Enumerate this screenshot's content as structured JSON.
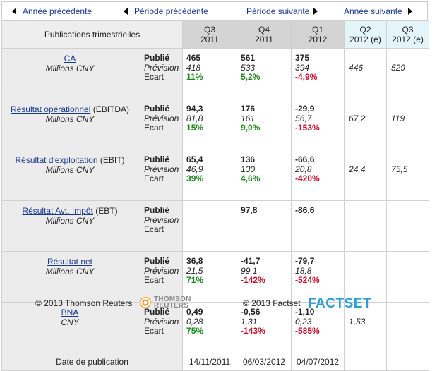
{
  "nav": {
    "prev_year": "Année précédente",
    "prev_period": "Période précédente",
    "next_period": "Période suivante",
    "next_year": "Année suivante"
  },
  "table": {
    "header_label": "Publications trimestrielles",
    "periods": [
      {
        "q": "Q3",
        "y": "2011",
        "estimate": false
      },
      {
        "q": "Q4",
        "y": "2011",
        "estimate": false
      },
      {
        "q": "Q1",
        "y": "2012",
        "estimate": false
      },
      {
        "q": "Q2",
        "y": "2012 (e)",
        "estimate": true
      },
      {
        "q": "Q3",
        "y": "2012 (e)",
        "estimate": true
      }
    ],
    "kinds": [
      "Publié",
      "Prévision",
      "Ecart"
    ],
    "rows": [
      {
        "name": "CA",
        "suffix": "",
        "unit": "Millions CNY",
        "actuals": [
          {
            "pub": "465",
            "prev": "418",
            "ecart": "11%",
            "sign": "pos"
          },
          {
            "pub": "561",
            "prev": "533",
            "ecart": "5,2%",
            "sign": "pos"
          },
          {
            "pub": "375",
            "prev": "394",
            "ecart": "-4,9%",
            "sign": "neg"
          }
        ],
        "estimates": [
          "446",
          "529"
        ]
      },
      {
        "name": "Résultat opérationnel",
        "suffix": " (EBITDA)",
        "unit": "Millions CNY",
        "actuals": [
          {
            "pub": "94,3",
            "prev": "81,8",
            "ecart": "15%",
            "sign": "pos"
          },
          {
            "pub": "176",
            "prev": "161",
            "ecart": "9,0%",
            "sign": "pos"
          },
          {
            "pub": "-29,9",
            "prev": "56,7",
            "ecart": "-153%",
            "sign": "neg"
          }
        ],
        "estimates": [
          "67,2",
          "119"
        ]
      },
      {
        "name": "Résultat d'exploitation",
        "suffix": " (EBIT)",
        "unit": "Millions CNY",
        "actuals": [
          {
            "pub": "65,4",
            "prev": "46,9",
            "ecart": "39%",
            "sign": "pos"
          },
          {
            "pub": "136",
            "prev": "130",
            "ecart": "4,6%",
            "sign": "pos"
          },
          {
            "pub": "-66,6",
            "prev": "20,8",
            "ecart": "-420%",
            "sign": "neg"
          }
        ],
        "estimates": [
          "24,4",
          "75,5"
        ]
      },
      {
        "name": "Résultat Avt. Impôt",
        "suffix": " (EBT)",
        "unit": "Millions CNY",
        "actuals": [
          {
            "pub": "",
            "prev": "",
            "ecart": "",
            "sign": "pos"
          },
          {
            "pub": "97,8",
            "prev": "",
            "ecart": "",
            "sign": "pos"
          },
          {
            "pub": "-86,6",
            "prev": "",
            "ecart": "",
            "sign": "neg"
          }
        ],
        "estimates": [
          "",
          ""
        ]
      },
      {
        "name": "Résultat net",
        "suffix": "",
        "unit": "Millions CNY",
        "actuals": [
          {
            "pub": "36,8",
            "prev": "21,5",
            "ecart": "71%",
            "sign": "pos"
          },
          {
            "pub": "-41,7",
            "prev": "99,1",
            "ecart": "-142%",
            "sign": "neg"
          },
          {
            "pub": "-79,7",
            "prev": "18,8",
            "ecart": "-524%",
            "sign": "neg"
          }
        ],
        "estimates": [
          "",
          ""
        ]
      },
      {
        "name": "BNA",
        "suffix": "",
        "unit": "CNY",
        "actuals": [
          {
            "pub": "0,49",
            "prev": "0,28",
            "ecart": "75%",
            "sign": "pos"
          },
          {
            "pub": "-0,56",
            "prev": "1,31",
            "ecart": "-143%",
            "sign": "neg"
          },
          {
            "pub": "-1,10",
            "prev": "0,23",
            "ecart": "-585%",
            "sign": "neg"
          }
        ],
        "estimates": [
          "1,53",
          ""
        ]
      }
    ],
    "date_label": "Date de publication",
    "dates": [
      "14/11/2011",
      "06/03/2012",
      "04/07/2012",
      "",
      ""
    ]
  },
  "footer": {
    "reuters_copy": "© 2013 Thomson Reuters",
    "reuters_logo": [
      "THOMSON",
      "REUTERS"
    ],
    "factset_copy": "© 2013 Factset",
    "factset_logo": "FACTSET"
  },
  "colors": {
    "positive": "#1e8a1e",
    "negative": "#c0102a",
    "link": "#1a3a8c",
    "estimate_header": "#e3f5f9"
  }
}
